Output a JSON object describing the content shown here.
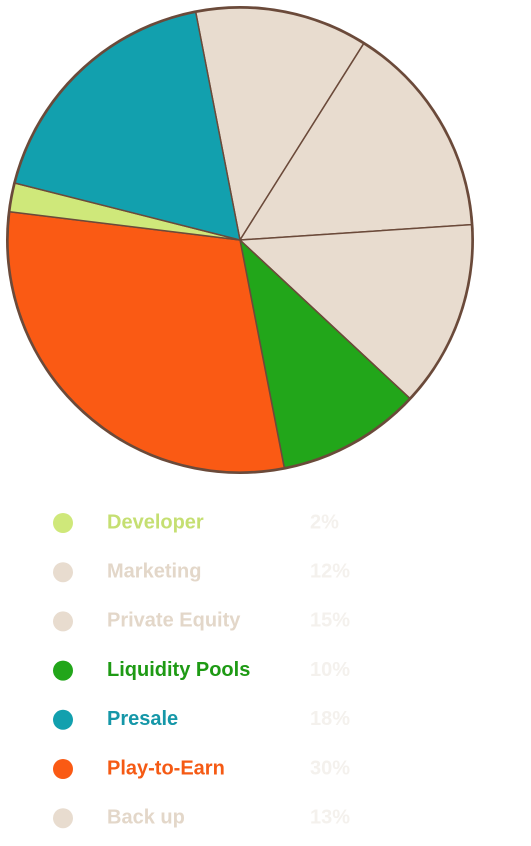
{
  "chart_data": {
    "type": "pie",
    "categories": [
      "Developer",
      "Marketing",
      "Private Equity",
      "Liquidity Pools",
      "Presale",
      "Play-to-Earn",
      "Back up"
    ],
    "values": [
      2,
      12,
      15,
      10,
      18,
      30,
      13
    ],
    "value_labels": [
      "2%",
      "12%",
      "15%",
      "10%",
      "18%",
      "30%",
      "13%"
    ],
    "colors": [
      "#cfe87a",
      "#e8dccf",
      "#e8dccf",
      "#22a61a",
      "#12a0ae",
      "#fa5a14",
      "#e8dccf"
    ],
    "label_colors": [
      "#c5df72",
      "#e3d7c9",
      "#e3d7c9",
      "#1e9a14",
      "#1597a8",
      "#f55a14",
      "#e3d7c9"
    ]
  }
}
